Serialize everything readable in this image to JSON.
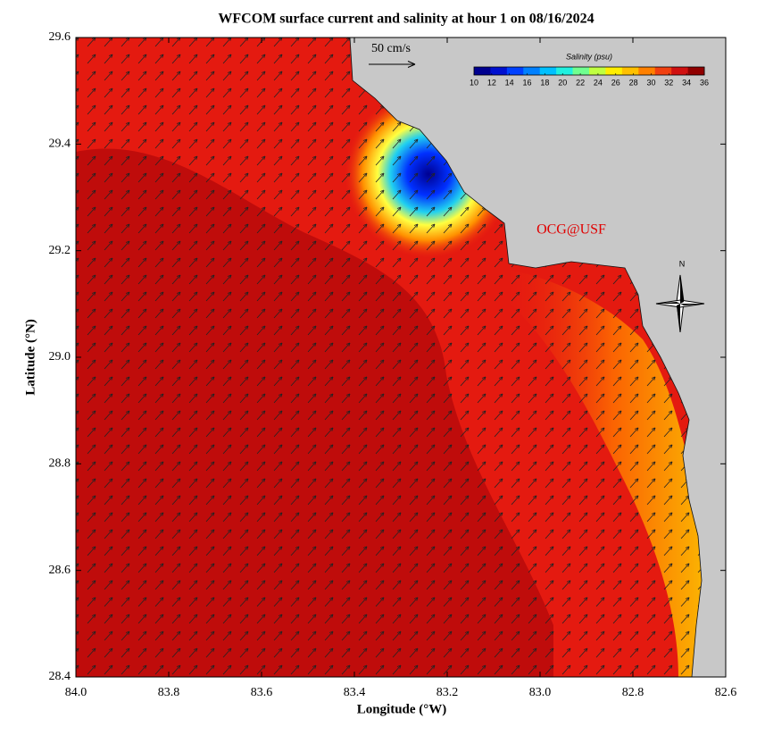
{
  "title": "WFCOM surface current and salinity at hour 1 on 08/16/2024",
  "x_axis": {
    "label": "Longitude (°W)",
    "lim": [
      84.0,
      82.6
    ],
    "ticks": [
      {
        "value": 84,
        "label": "84.0"
      },
      83.8,
      83.6,
      83.4,
      83.2,
      {
        "value": 83,
        "label": "83.0"
      },
      82.8,
      82.6
    ]
  },
  "y_axis": {
    "label": "Latitude (°N)",
    "lim": [
      28.4,
      29.6
    ],
    "ticks": [
      28.4,
      28.6,
      28.8,
      {
        "value": 29,
        "label": "29.0"
      },
      29.2,
      29.4,
      29.6
    ]
  },
  "colorbar": {
    "label": "Salinity (psu)",
    "lim": [
      10,
      36
    ],
    "ticks": [
      10,
      12,
      14,
      16,
      18,
      20,
      22,
      24,
      26,
      28,
      30,
      32,
      34,
      36
    ],
    "colors": [
      "#00008f",
      "#0010d0",
      "#0040ff",
      "#0080ff",
      "#00c0ff",
      "#20f0e0",
      "#70ff90",
      "#c0ff40",
      "#ffee00",
      "#ffc000",
      "#ff8000",
      "#f04010",
      "#d01010",
      "#900000"
    ]
  },
  "scale_arrow_label": "50 cm/s",
  "credit": "OCG@USF",
  "compass": "N"
}
